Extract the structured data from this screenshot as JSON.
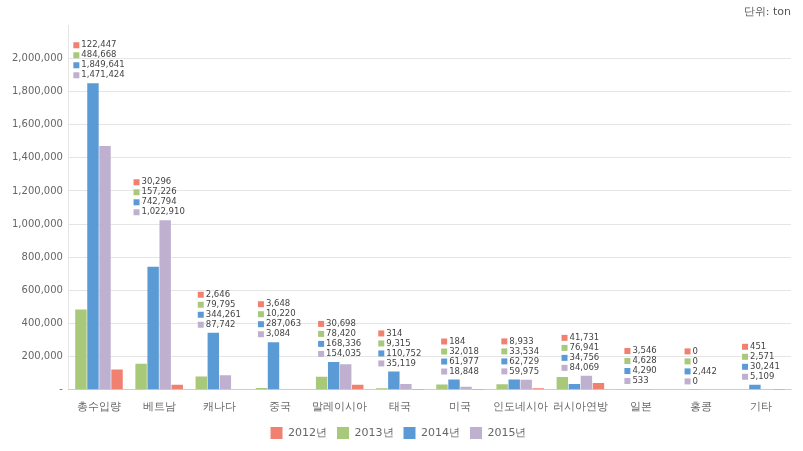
{
  "chart_data": {
    "type": "bar",
    "subtitle": "단위: ton",
    "categories": [
      "총수입량",
      "베트남",
      "캐나다",
      "중국",
      "말레이시아",
      "태국",
      "미국",
      "인도네시아",
      "러시아연방",
      "일본",
      "홍콩",
      "기타"
    ],
    "series": [
      {
        "name": "2013년",
        "color": "#a8c87a",
        "values": [
          484668,
          157226,
          79795,
          10220,
          78420,
          9315,
          32018,
          33534,
          76941,
          4628,
          0,
          2571
        ],
        "value_labels": [
          "484,668",
          "157,226",
          "79,795",
          "10,220",
          "78,420",
          "9,315",
          "32,018",
          "33,534",
          "76,941",
          "4,628",
          "0",
          "2,571"
        ]
      },
      {
        "name": "2014년",
        "color": "#5b9bd5",
        "values": [
          1849641,
          742794,
          344261,
          287063,
          168336,
          110752,
          61977,
          62729,
          34756,
          4290,
          2442,
          30241
        ],
        "value_labels": [
          "1,849,641",
          "742,794",
          "344,261",
          "287,063",
          "168,336",
          "110,752",
          "61,977",
          "62,729",
          "34,756",
          "4,290",
          "2,442",
          "30,241"
        ]
      },
      {
        "name": "2015년",
        "color": "#c0b0d0",
        "values": [
          1471424,
          1022910,
          87742,
          3084,
          154035,
          35119,
          18848,
          59975,
          84069,
          533,
          0,
          5109
        ],
        "value_labels": [
          "1,471,424",
          "1,022,910",
          "87,742",
          "3,084",
          "154,035",
          "35,119",
          "18,848",
          "59,975",
          "84,069",
          "533",
          "0",
          "5,109"
        ]
      },
      {
        "name": "2012년",
        "color": "#f08070",
        "values": [
          122447,
          30296,
          2646,
          3648,
          30698,
          314,
          184,
          8933,
          41731,
          3546,
          0,
          451
        ],
        "value_labels": [
          "122,447",
          "30,296",
          "2,646",
          "3,648",
          "30,698",
          "314",
          "184",
          "8,933",
          "41,731",
          "3,546",
          "0",
          "451"
        ]
      }
    ],
    "ylim": [
      0,
      2200000
    ],
    "yticks": [
      {
        "value": 0,
        "label": "-"
      },
      {
        "value": 200000,
        "label": "200,000"
      },
      {
        "value": 400000,
        "label": "400,000"
      },
      {
        "value": 600000,
        "label": "600,000"
      },
      {
        "value": 800000,
        "label": "800,000"
      },
      {
        "value": 1000000,
        "label": "1,000,000"
      },
      {
        "value": 1200000,
        "label": "1,200,000"
      },
      {
        "value": 1400000,
        "label": "1,400,000"
      },
      {
        "value": 1600000,
        "label": "1,600,000"
      },
      {
        "value": 1800000,
        "label": "1,800,000"
      },
      {
        "value": 2000000,
        "label": "2,000,000"
      }
    ],
    "grid": true,
    "legend": "bottom",
    "data_labels": true
  }
}
